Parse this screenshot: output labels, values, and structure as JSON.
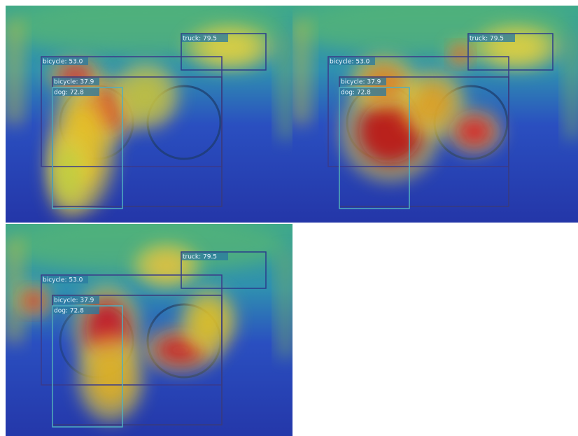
{
  "panels": [
    {
      "boxes": [
        {
          "label": "truck: 79.5"
        },
        {
          "label": "bicycle: 53.0"
        },
        {
          "label": "bicycle: 37.9"
        },
        {
          "label": "dog: 72.8"
        }
      ]
    },
    {
      "boxes": [
        {
          "label": "truck: 79.5"
        },
        {
          "label": "bicycle: 53.0"
        },
        {
          "label": "bicycle: 37.9"
        },
        {
          "label": "dog: 72.8"
        }
      ]
    },
    {
      "boxes": [
        {
          "label": "truck: 79.5"
        },
        {
          "label": "bicycle: 53.0"
        },
        {
          "label": "bicycle: 37.9"
        },
        {
          "label": "dog: 72.8"
        }
      ]
    }
  ]
}
